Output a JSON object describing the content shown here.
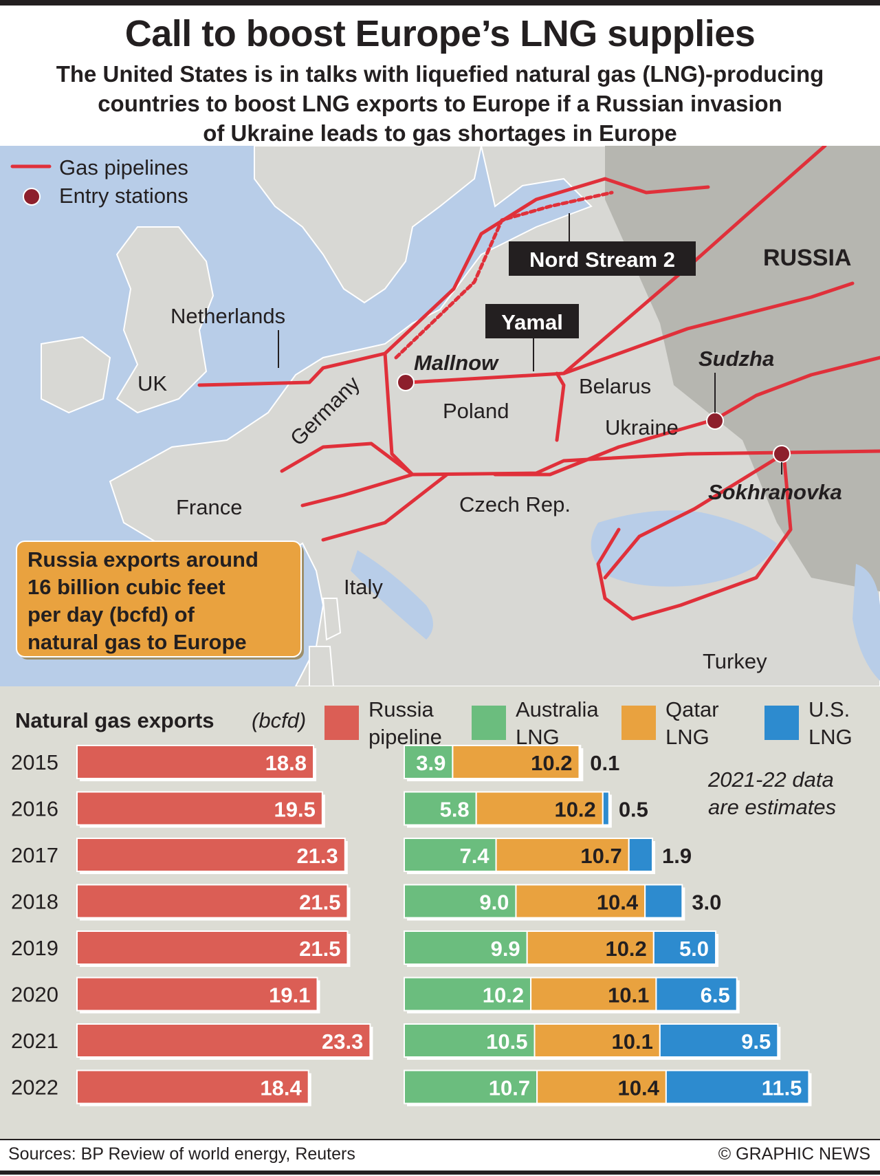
{
  "title": "Call to boost Europe’s LNG supplies",
  "subtitle_lines": [
    "The United States is in talks with liquefied natural gas (LNG)-producing",
    "countries to boost LNG exports to Europe if a Russian invasion",
    "of Ukraine leads to gas shortages in Europe"
  ],
  "map": {
    "legend": {
      "pipelines": "Gas pipelines",
      "stations": "Entry stations"
    },
    "region_labels": {
      "russia": "RUSSIA",
      "netherlands": "Netherlands",
      "uk": "UK",
      "germany": "Germany",
      "poland": "Poland",
      "belarus": "Belarus",
      "ukraine": "Ukraine",
      "france": "France",
      "czech": "Czech Rep.",
      "italy": "Italy",
      "turkey": "Turkey"
    },
    "pipeline_labels": {
      "nord_stream_2": "Nord Stream 2",
      "yamal": "Yamal"
    },
    "station_labels": {
      "mallnow": "Mallnow",
      "sudzha": "Sudzha",
      "sokhranovka": "Sokhranovka"
    },
    "callout": [
      "Russia exports around",
      "16 billion cubic feet",
      "per day (bcfd) of",
      "natural gas to Europe"
    ]
  },
  "chart_data": {
    "type": "bar",
    "title": "Natural gas exports",
    "unit": "(bcfd)",
    "note": [
      "2021-22 data",
      "are estimates"
    ],
    "categories": [
      "2015",
      "2016",
      "2017",
      "2018",
      "2019",
      "2020",
      "2021",
      "2022"
    ],
    "series": [
      {
        "name": "Russia pipeline",
        "name_lines": [
          "Russia",
          "pipeline"
        ],
        "color": "#db5e55",
        "values": [
          18.8,
          19.5,
          21.3,
          21.5,
          21.5,
          19.1,
          23.3,
          18.4
        ]
      },
      {
        "name": "Australia LNG",
        "name_lines": [
          "Australia",
          "LNG"
        ],
        "color": "#6bbd7e",
        "values": [
          3.9,
          5.8,
          7.4,
          9.0,
          9.9,
          10.2,
          10.5,
          10.7
        ]
      },
      {
        "name": "Qatar LNG",
        "name_lines": [
          "Qatar",
          "LNG"
        ],
        "color": "#e9a23f",
        "values": [
          10.2,
          10.2,
          10.7,
          10.4,
          10.2,
          10.1,
          10.1,
          10.4
        ]
      },
      {
        "name": "U.S. LNG",
        "name_lines": [
          "U.S.",
          "LNG"
        ],
        "color": "#2d8bcf",
        "values": [
          0.1,
          0.5,
          1.9,
          3.0,
          5.0,
          6.5,
          9.5,
          11.5
        ]
      }
    ],
    "value_labels": {
      "russia": [
        "18.8",
        "19.5",
        "21.3",
        "21.5",
        "21.5",
        "19.1",
        "23.3",
        "18.4"
      ],
      "australia": [
        "3.9",
        "5.8",
        "7.4",
        "9.0",
        "9.9",
        "10.2",
        "10.5",
        "10.7"
      ],
      "qatar": [
        "10.2",
        "10.2",
        "10.7",
        "10.4",
        "10.2",
        "10.1",
        "10.1",
        "10.4"
      ],
      "us": [
        "0.1",
        "0.5",
        "1.9",
        "3.0",
        "5.0",
        "6.5",
        "9.5",
        "11.5"
      ]
    }
  },
  "footer": {
    "sources": "Sources: BP Review of world energy, Reuters",
    "credit": "© GRAPHIC NEWS"
  }
}
